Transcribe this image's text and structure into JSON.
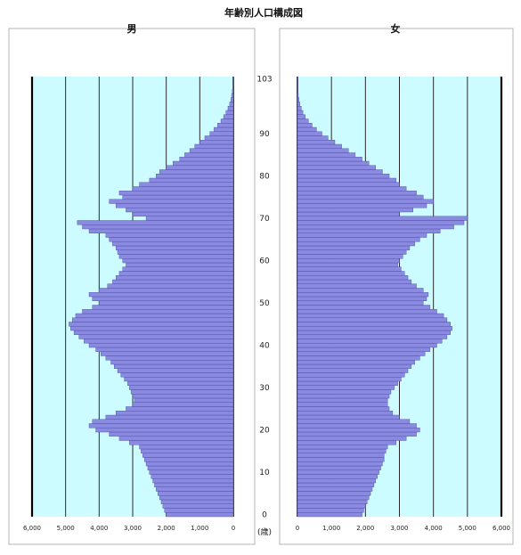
{
  "page_title": "年齢別人口構成図",
  "chart_data": [
    {
      "type": "bar",
      "orientation": "horizontal",
      "title": "男",
      "x_direction": "right-to-left",
      "xlim": [
        0,
        6000
      ],
      "x_ticks": [
        "6,000",
        "5,000",
        "4,000",
        "3,000",
        "2,000",
        "1,000",
        "0"
      ],
      "ages": [
        0,
        1,
        2,
        3,
        4,
        5,
        6,
        7,
        8,
        9,
        10,
        11,
        12,
        13,
        14,
        15,
        16,
        17,
        18,
        19,
        20,
        21,
        22,
        23,
        24,
        25,
        26,
        27,
        28,
        29,
        30,
        31,
        32,
        33,
        34,
        35,
        36,
        37,
        38,
        39,
        40,
        41,
        42,
        43,
        44,
        45,
        46,
        47,
        48,
        49,
        50,
        51,
        52,
        53,
        54,
        55,
        56,
        57,
        58,
        59,
        60,
        61,
        62,
        63,
        64,
        65,
        66,
        67,
        68,
        69,
        70,
        71,
        72,
        73,
        74,
        75,
        76,
        77,
        78,
        79,
        80,
        81,
        82,
        83,
        84,
        85,
        86,
        87,
        88,
        89,
        90,
        91,
        92,
        93,
        94,
        95,
        96,
        97,
        98,
        99,
        100,
        101,
        102,
        103
      ],
      "values": [
        2000,
        2050,
        2100,
        2150,
        2200,
        2250,
        2300,
        2350,
        2400,
        2450,
        2500,
        2550,
        2600,
        2650,
        2700,
        2750,
        2800,
        3100,
        3400,
        3700,
        4100,
        4300,
        4200,
        3800,
        3500,
        3200,
        3000,
        2950,
        3000,
        3050,
        3100,
        3150,
        3250,
        3350,
        3450,
        3550,
        3650,
        3800,
        3950,
        4100,
        4300,
        4450,
        4600,
        4750,
        4850,
        4900,
        4800,
        4700,
        4500,
        4200,
        4000,
        4200,
        4300,
        4000,
        3750,
        3600,
        3500,
        3400,
        3300,
        3200,
        3300,
        3400,
        3450,
        3500,
        3600,
        3700,
        3800,
        4300,
        4500,
        4650,
        2600,
        3000,
        3200,
        3500,
        3700,
        3300,
        3400,
        3000,
        2800,
        2500,
        2300,
        2200,
        2000,
        1800,
        1600,
        1450,
        1300,
        1150,
        1000,
        850,
        700,
        580,
        470,
        370,
        290,
        220,
        160,
        110,
        75,
        50,
        30,
        18,
        10,
        5
      ]
    },
    {
      "type": "bar",
      "orientation": "horizontal",
      "title": "女",
      "x_direction": "left-to-right",
      "xlim": [
        0,
        6000
      ],
      "x_ticks": [
        "0",
        "1,000",
        "2,000",
        "3,000",
        "4,000",
        "5,000",
        "6,000"
      ],
      "ages": [
        0,
        1,
        2,
        3,
        4,
        5,
        6,
        7,
        8,
        9,
        10,
        11,
        12,
        13,
        14,
        15,
        16,
        17,
        18,
        19,
        20,
        21,
        22,
        23,
        24,
        25,
        26,
        27,
        28,
        29,
        30,
        31,
        32,
        33,
        34,
        35,
        36,
        37,
        38,
        39,
        40,
        41,
        42,
        43,
        44,
        45,
        46,
        47,
        48,
        49,
        50,
        51,
        52,
        53,
        54,
        55,
        56,
        57,
        58,
        59,
        60,
        61,
        62,
        63,
        64,
        65,
        66,
        67,
        68,
        69,
        70,
        71,
        72,
        73,
        74,
        75,
        76,
        77,
        78,
        79,
        80,
        81,
        82,
        83,
        84,
        85,
        86,
        87,
        88,
        89,
        90,
        91,
        92,
        93,
        94,
        95,
        96,
        97,
        98,
        99,
        100,
        101,
        102,
        103
      ],
      "values": [
        1900,
        1950,
        2000,
        2050,
        2100,
        2150,
        2200,
        2250,
        2300,
        2350,
        2400,
        2450,
        2500,
        2550,
        2550,
        2600,
        2650,
        2900,
        3200,
        3500,
        3600,
        3500,
        3300,
        3000,
        2800,
        2700,
        2650,
        2650,
        2700,
        2750,
        2850,
        2950,
        3050,
        3150,
        3250,
        3350,
        3450,
        3600,
        3750,
        3900,
        4100,
        4250,
        4400,
        4500,
        4550,
        4500,
        4400,
        4300,
        4100,
        3900,
        3700,
        3800,
        3850,
        3700,
        3500,
        3350,
        3250,
        3150,
        3050,
        2950,
        3000,
        3100,
        3200,
        3300,
        3450,
        3600,
        3800,
        4200,
        4600,
        4900,
        5000,
        3000,
        3400,
        3800,
        4000,
        3700,
        3500,
        3200,
        3000,
        2900,
        2700,
        2500,
        2300,
        2100,
        1900,
        1700,
        1500,
        1300,
        1100,
        900,
        720,
        560,
        430,
        320,
        230,
        160,
        110,
        70,
        45,
        25,
        15,
        8,
        4,
        2
      ]
    }
  ],
  "age_axis": {
    "ticks": [
      "0",
      "10",
      "20",
      "30",
      "40",
      "50",
      "60",
      "70",
      "80",
      "90",
      "103"
    ],
    "tick_ages": [
      0,
      10,
      20,
      30,
      40,
      50,
      60,
      70,
      80,
      90,
      103
    ],
    "unit": "(歳)"
  },
  "colors": {
    "bar_fill": "#8a8ae0",
    "bar_stroke": "#4848a0",
    "plot_bg": "#ccfcff",
    "gridline": "#2a2a2a",
    "axis": "#000000"
  }
}
